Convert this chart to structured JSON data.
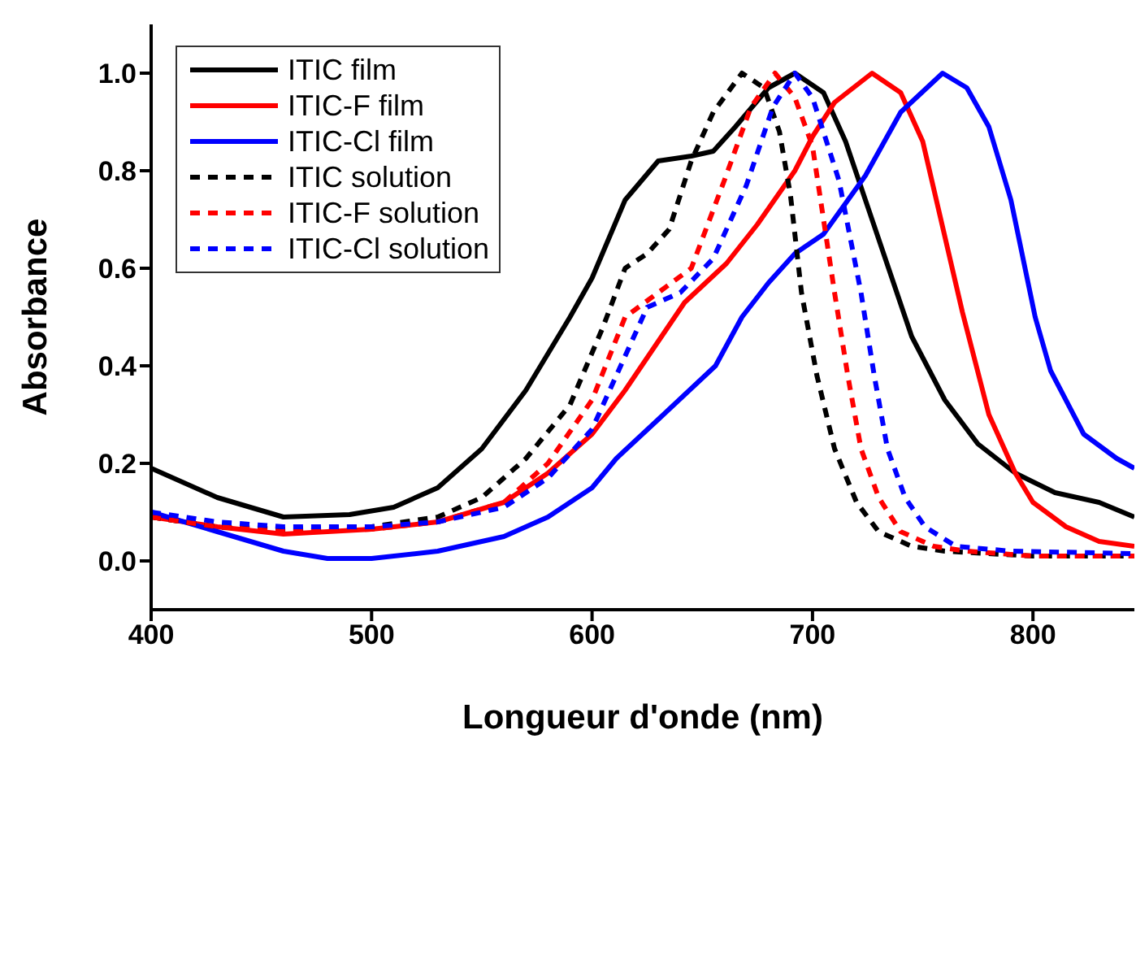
{
  "chart_data": {
    "type": "line",
    "xlabel": "Longueur d'onde (nm)",
    "ylabel": "Absorbance",
    "xlim": [
      400,
      846
    ],
    "xticks": [
      400,
      500,
      600,
      700,
      800
    ],
    "ylim": [
      -0.1,
      1.1
    ],
    "yticks": [
      {
        "value": 0,
        "label": "0.0"
      },
      0.2,
      0.4,
      0.6,
      0.8,
      {
        "value": 1,
        "label": "1.0"
      }
    ],
    "legend": "top left",
    "marker": "none",
    "series": [
      {
        "name": "ITIC film",
        "color": "#000000",
        "line_style": "solid",
        "x": [
          400,
          430,
          460,
          490,
          510,
          530,
          550,
          570,
          590,
          600,
          615,
          630,
          645,
          655,
          665,
          680,
          692,
          705,
          715,
          730,
          745,
          760,
          775,
          792,
          810,
          830,
          846
        ],
        "values": [
          0.19,
          0.13,
          0.09,
          0.095,
          0.11,
          0.15,
          0.23,
          0.35,
          0.5,
          0.58,
          0.74,
          0.82,
          0.83,
          0.84,
          0.89,
          0.97,
          1.0,
          0.96,
          0.86,
          0.66,
          0.46,
          0.33,
          0.24,
          0.18,
          0.14,
          0.12,
          0.09
        ]
      },
      {
        "name": "ITIC-F film",
        "color": "#ff0000",
        "line_style": "solid",
        "x": [
          400,
          430,
          460,
          500,
          530,
          560,
          580,
          600,
          615,
          630,
          642,
          661,
          675,
          692,
          700,
          710,
          727,
          740,
          750,
          768,
          780,
          792,
          800,
          815,
          830,
          846
        ],
        "values": [
          0.09,
          0.07,
          0.055,
          0.065,
          0.08,
          0.12,
          0.18,
          0.26,
          0.35,
          0.45,
          0.53,
          0.61,
          0.69,
          0.8,
          0.87,
          0.94,
          1.0,
          0.96,
          0.86,
          0.51,
          0.3,
          0.18,
          0.12,
          0.07,
          0.04,
          0.03
        ]
      },
      {
        "name": "ITIC-Cl film",
        "color": "#0000ff",
        "line_style": "solid",
        "x": [
          400,
          430,
          460,
          480,
          500,
          530,
          560,
          580,
          600,
          611,
          630,
          656,
          668,
          680,
          692,
          705,
          724,
          740,
          759,
          770,
          780,
          790,
          801,
          808,
          823,
          838,
          846
        ],
        "values": [
          0.1,
          0.06,
          0.02,
          0.005,
          0.005,
          0.02,
          0.05,
          0.09,
          0.15,
          0.21,
          0.29,
          0.4,
          0.5,
          0.57,
          0.63,
          0.67,
          0.79,
          0.92,
          1.0,
          0.97,
          0.89,
          0.74,
          0.5,
          0.39,
          0.26,
          0.21,
          0.19
        ]
      },
      {
        "name": "ITIC solution",
        "color": "#000000",
        "line_style": "dashed",
        "x": [
          400,
          430,
          460,
          500,
          530,
          550,
          570,
          590,
          605,
          615,
          625,
          635,
          645,
          655,
          668,
          678,
          685,
          690,
          695,
          702,
          710,
          720,
          730,
          745,
          760,
          800,
          846
        ],
        "values": [
          0.09,
          0.07,
          0.065,
          0.07,
          0.09,
          0.13,
          0.21,
          0.32,
          0.48,
          0.6,
          0.63,
          0.68,
          0.82,
          0.92,
          1.0,
          0.97,
          0.88,
          0.75,
          0.55,
          0.38,
          0.23,
          0.12,
          0.06,
          0.03,
          0.02,
          0.01,
          0.01
        ]
      },
      {
        "name": "ITIC-F solution",
        "color": "#ff0000",
        "line_style": "dashed",
        "x": [
          400,
          430,
          460,
          500,
          530,
          560,
          580,
          600,
          615,
          630,
          645,
          660,
          672,
          683,
          692,
          700,
          710,
          716,
          722,
          730,
          740,
          755,
          770,
          800,
          846
        ],
        "values": [
          0.09,
          0.07,
          0.06,
          0.065,
          0.08,
          0.12,
          0.2,
          0.33,
          0.5,
          0.55,
          0.6,
          0.78,
          0.93,
          1.0,
          0.95,
          0.85,
          0.55,
          0.38,
          0.23,
          0.13,
          0.06,
          0.03,
          0.02,
          0.01,
          0.01
        ]
      },
      {
        "name": "ITIC-Cl solution",
        "color": "#0000ff",
        "line_style": "dashed",
        "x": [
          400,
          430,
          460,
          500,
          530,
          560,
          580,
          600,
          615,
          625,
          640,
          655,
          670,
          682,
          692,
          700,
          712,
          722,
          728,
          734,
          742,
          751,
          765,
          790,
          846
        ],
        "values": [
          0.1,
          0.08,
          0.07,
          0.07,
          0.08,
          0.11,
          0.17,
          0.27,
          0.42,
          0.52,
          0.55,
          0.62,
          0.77,
          0.93,
          1.0,
          0.95,
          0.78,
          0.55,
          0.38,
          0.23,
          0.13,
          0.07,
          0.03,
          0.02,
          0.015
        ]
      }
    ]
  }
}
